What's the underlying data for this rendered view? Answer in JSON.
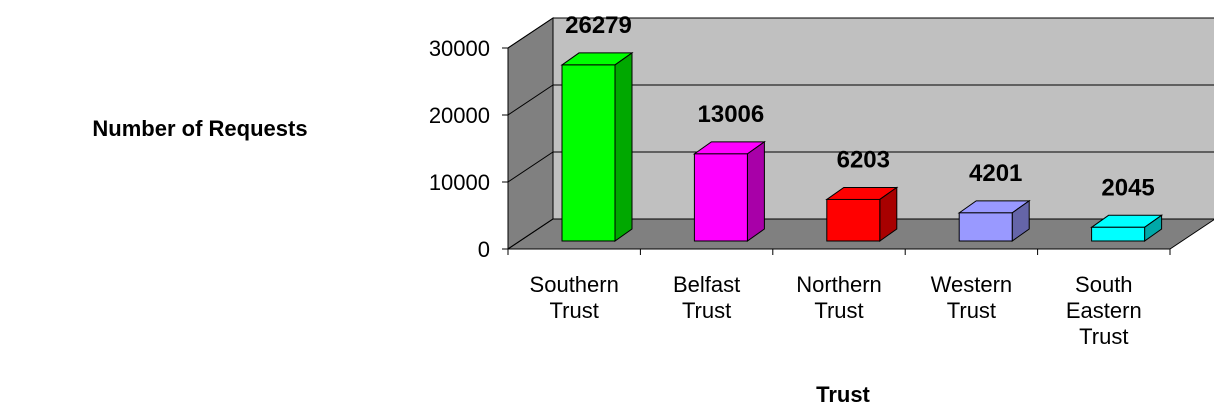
{
  "chart_data": {
    "type": "bar3d",
    "y_label": "Number of Requests",
    "x_label": "Trust",
    "categories": [
      "Southern Trust",
      "Belfast Trust",
      "Northern Trust",
      "Western Trust",
      "South Eastern Trust"
    ],
    "values": [
      26279,
      13006,
      6203,
      4201,
      2045
    ],
    "colors": [
      "#00ff00",
      "#ff00ff",
      "#ff0000",
      "#9999ff",
      "#00ffff"
    ],
    "ylim": [
      0,
      30000
    ],
    "yticks": [
      0,
      10000,
      20000,
      30000
    ],
    "grid": true
  }
}
